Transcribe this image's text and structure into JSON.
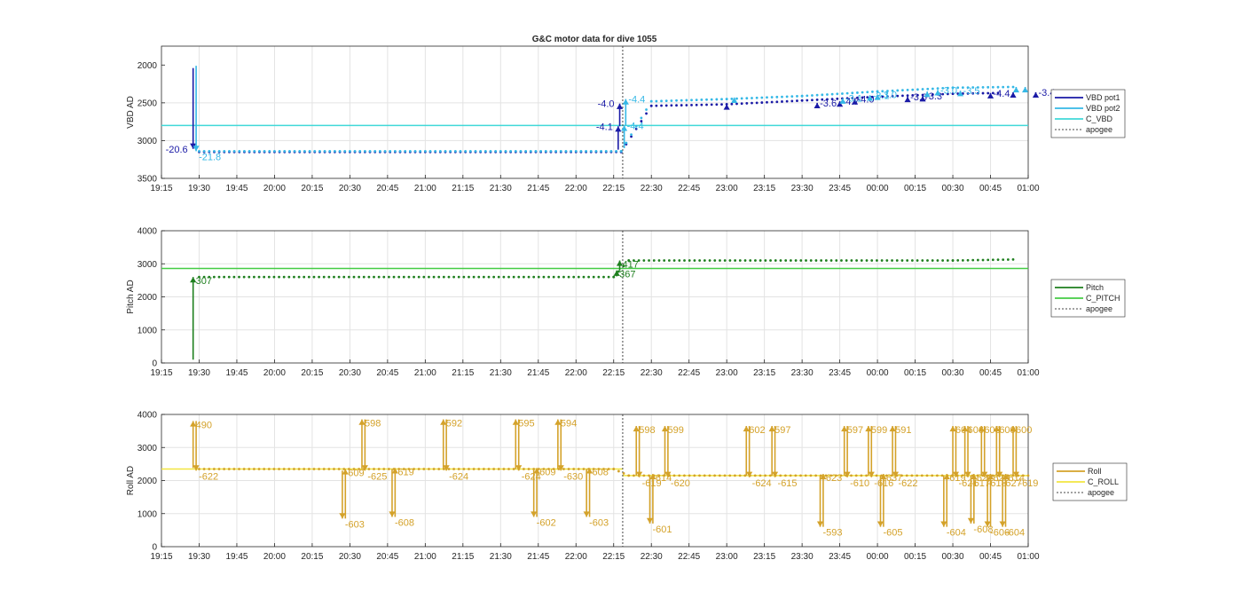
{
  "figure": {
    "title": "G&C motor data for dive 1055"
  },
  "colors": {
    "vbd_pot1": "#1a1aa6",
    "vbd_pot2": "#35b8e6",
    "c_vbd": "#40d8d8",
    "pitch": "#1e7f1e",
    "c_pitch": "#44cc44",
    "roll": "#d4a22a",
    "c_roll": "#f2e640",
    "apogee": "#444444",
    "grid": "#e3e3e3",
    "axis": "#262626"
  },
  "time_ticks": [
    "19:15",
    "19:30",
    "19:45",
    "20:00",
    "20:15",
    "20:30",
    "20:45",
    "21:00",
    "21:15",
    "21:30",
    "21:45",
    "22:00",
    "22:15",
    "22:30",
    "22:45",
    "23:00",
    "23:15",
    "23:30",
    "23:45",
    "00:00",
    "00:15",
    "00:30",
    "00:45",
    "01:00"
  ],
  "chart_data": [
    {
      "type": "line",
      "title": "G&C motor data for dive 1055",
      "ylabel": "VBD AD",
      "xlim_hours": [
        19.25,
        25.0
      ],
      "ylim": [
        3500,
        1750
      ],
      "yticks": [
        "2000",
        "2500",
        "3000",
        "3500"
      ],
      "grid": true,
      "legend_position": "right",
      "legend": [
        "VBD pot1",
        "VBD pot2",
        "C_VBD",
        "apogee"
      ],
      "apogee_hours": 22.31,
      "reference_line": {
        "name": "C_VBD",
        "value": 2800
      },
      "series": [
        {
          "name": "VBD pot1",
          "x_hours": [
            19.5,
            22.3,
            22.5,
            23.0,
            23.5,
            24.0,
            24.5,
            24.8
          ],
          "values": [
            3150,
            3150,
            2540,
            2520,
            2470,
            2420,
            2380,
            2370
          ]
        },
        {
          "name": "VBD pot2",
          "x_hours": [
            19.5,
            22.3,
            22.5,
            23.0,
            23.5,
            24.0,
            24.5,
            24.9
          ],
          "values": [
            3140,
            3140,
            2480,
            2450,
            2410,
            2350,
            2300,
            2290
          ]
        }
      ],
      "moves": [
        {
          "series": "VBD pot1",
          "x_hours": 19.46,
          "from": 2040,
          "to": 3110,
          "label": "-20.6"
        },
        {
          "series": "VBD pot2",
          "x_hours": 19.48,
          "from": 2010,
          "to": 3140,
          "label": "-21.8"
        },
        {
          "series": "VBD pot1",
          "x_hours": 22.28,
          "from": 3120,
          "to": 2810,
          "label": "-4.1"
        },
        {
          "series": "VBD pot1",
          "x_hours": 22.29,
          "from": 2810,
          "to": 2510,
          "label": "-4.0"
        },
        {
          "series": "VBD pot2",
          "x_hours": 22.32,
          "from": 3100,
          "to": 2800,
          "label": "-4.4"
        },
        {
          "series": "VBD pot2",
          "x_hours": 22.33,
          "from": 2800,
          "to": 2450,
          "label": "-4.4"
        },
        {
          "series": "VBD pot1",
          "x_hours": 23.0,
          "from": 2560,
          "to": 2520,
          "label": ""
        },
        {
          "series": "VBD pot2",
          "x_hours": 23.05,
          "from": 2460,
          "to": 2430,
          "label": ""
        },
        {
          "series": "VBD pot1",
          "x_hours": 23.6,
          "from": 2520,
          "to": 2500,
          "label": "-3.6"
        },
        {
          "series": "VBD pot1",
          "x_hours": 23.75,
          "from": 2510,
          "to": 2480,
          "label": "-4.7"
        },
        {
          "series": "VBD pot1",
          "x_hours": 23.85,
          "from": 2490,
          "to": 2450,
          "label": "-4.0"
        },
        {
          "series": "VBD pot2",
          "x_hours": 23.77,
          "from": 2470,
          "to": 2440,
          "label": "-3.1"
        },
        {
          "series": "VBD pot2",
          "x_hours": 23.95,
          "from": 2430,
          "to": 2400,
          "label": "-3.1"
        },
        {
          "series": "VBD pot2",
          "x_hours": 24.0,
          "from": 2420,
          "to": 2390,
          "label": "-3.0"
        },
        {
          "series": "VBD pot1",
          "x_hours": 24.2,
          "from": 2450,
          "to": 2420,
          "label": "-3.6"
        },
        {
          "series": "VBD pot1",
          "x_hours": 24.3,
          "from": 2430,
          "to": 2410,
          "label": "-3.3"
        },
        {
          "series": "VBD pot2",
          "x_hours": 24.33,
          "from": 2380,
          "to": 2350,
          "label": ""
        },
        {
          "series": "VBD pot2",
          "x_hours": 24.4,
          "from": 2370,
          "to": 2330,
          "label": "-3.0"
        },
        {
          "series": "VBD pot2",
          "x_hours": 24.55,
          "from": 2360,
          "to": 2340,
          "label": "-3.5"
        },
        {
          "series": "VBD pot1",
          "x_hours": 24.75,
          "from": 2390,
          "to": 2370,
          "label": "-4.4"
        },
        {
          "series": "VBD pot1",
          "x_hours": 24.9,
          "from": 2380,
          "to": 2360,
          "label": ""
        },
        {
          "series": "VBD pot2",
          "x_hours": 24.92,
          "from": 2320,
          "to": 2290,
          "label": ""
        },
        {
          "series": "VBD pot1",
          "x_hours": 25.05,
          "from": 2380,
          "to": 2360,
          "label": "-3.4"
        },
        {
          "series": "VBD pot2",
          "x_hours": 24.98,
          "from": 2310,
          "to": 2290,
          "label": ""
        }
      ]
    },
    {
      "type": "line",
      "ylabel": "Pitch AD",
      "xlim_hours": [
        19.25,
        25.0
      ],
      "ylim": [
        0,
        4000
      ],
      "yticks": [
        "0",
        "1000",
        "2000",
        "3000",
        "4000"
      ],
      "grid": true,
      "legend_position": "right",
      "legend": [
        "Pitch",
        "C_PITCH",
        "apogee"
      ],
      "apogee_hours": 22.31,
      "reference_line": {
        "name": "C_PITCH",
        "value": 2860
      },
      "series": [
        {
          "name": "Pitch",
          "x_hours": [
            19.5,
            22.25,
            22.35,
            24.5,
            24.9
          ],
          "values": [
            2600,
            2600,
            3100,
            3100,
            3130
          ]
        }
      ],
      "moves": [
        {
          "series": "Pitch",
          "x_hours": 19.46,
          "from": 100,
          "to": 2600,
          "label": "307"
        },
        {
          "series": "Pitch",
          "x_hours": 22.27,
          "from": 2620,
          "to": 2800,
          "label": "367"
        },
        {
          "series": "Pitch",
          "x_hours": 22.29,
          "from": 2800,
          "to": 3100,
          "label": "417"
        }
      ]
    },
    {
      "type": "line",
      "ylabel": "Roll AD",
      "xlim_hours": [
        19.25,
        25.0
      ],
      "ylim": [
        0,
        4000
      ],
      "yticks": [
        "0",
        "1000",
        "2000",
        "3000",
        "4000"
      ],
      "grid": true,
      "legend_position": "right",
      "legend": [
        "Roll",
        "C_ROLL",
        "apogee"
      ],
      "apogee_hours": 22.31,
      "reference_lines": [
        {
          "name": "C_ROLL",
          "x_hours": [
            19.25,
            22.31
          ],
          "value": 2350
        },
        {
          "name": "C_ROLL",
          "x_hours": [
            22.31,
            25.0
          ],
          "value": 2150
        }
      ],
      "series": [
        {
          "name": "Roll",
          "x_hours": [
            19.5,
            22.25,
            22.35,
            25.0
          ],
          "values": [
            2350,
            2350,
            2150,
            2150
          ]
        }
      ],
      "moves": [
        {
          "x_hours": 19.46,
          "from": 2380,
          "to": 3800,
          "label": "490"
        },
        {
          "x_hours": 19.48,
          "from": 3800,
          "to": 2300,
          "label": "-622"
        },
        {
          "x_hours": 20.45,
          "from": 2300,
          "to": 850,
          "label": "-603"
        },
        {
          "x_hours": 20.47,
          "from": 850,
          "to": 2350,
          "label": "609"
        },
        {
          "x_hours": 20.58,
          "from": 2350,
          "to": 3850,
          "label": "598"
        },
        {
          "x_hours": 20.6,
          "from": 3850,
          "to": 2300,
          "label": "-625"
        },
        {
          "x_hours": 20.78,
          "from": 2350,
          "to": 900,
          "label": "-608"
        },
        {
          "x_hours": 20.8,
          "from": 900,
          "to": 2380,
          "label": "619"
        },
        {
          "x_hours": 21.12,
          "from": 2350,
          "to": 3850,
          "label": "592"
        },
        {
          "x_hours": 21.14,
          "from": 3850,
          "to": 2300,
          "label": "-624"
        },
        {
          "x_hours": 21.6,
          "from": 2350,
          "to": 3850,
          "label": "595"
        },
        {
          "x_hours": 21.62,
          "from": 3850,
          "to": 2300,
          "label": "-624"
        },
        {
          "x_hours": 21.72,
          "from": 2350,
          "to": 900,
          "label": "-602"
        },
        {
          "x_hours": 21.74,
          "from": 900,
          "to": 2380,
          "label": "609"
        },
        {
          "x_hours": 21.88,
          "from": 2350,
          "to": 3850,
          "label": "594"
        },
        {
          "x_hours": 21.9,
          "from": 3850,
          "to": 2300,
          "label": "-630"
        },
        {
          "x_hours": 22.07,
          "from": 2350,
          "to": 900,
          "label": "-603"
        },
        {
          "x_hours": 22.09,
          "from": 900,
          "to": 2380,
          "label": "608"
        },
        {
          "x_hours": 22.4,
          "from": 2150,
          "to": 3650,
          "label": "598"
        },
        {
          "x_hours": 22.42,
          "from": 3650,
          "to": 2100,
          "label": "-619"
        },
        {
          "x_hours": 22.49,
          "from": 2150,
          "to": 700,
          "label": "-601"
        },
        {
          "x_hours": 22.51,
          "from": 700,
          "to": 2200,
          "label": "614"
        },
        {
          "x_hours": 22.59,
          "from": 2150,
          "to": 3650,
          "label": "599"
        },
        {
          "x_hours": 22.61,
          "from": 3650,
          "to": 2100,
          "label": "-620"
        },
        {
          "x_hours": 23.13,
          "from": 2150,
          "to": 3650,
          "label": "602"
        },
        {
          "x_hours": 23.15,
          "from": 3650,
          "to": 2100,
          "label": "-624"
        },
        {
          "x_hours": 23.3,
          "from": 2150,
          "to": 3650,
          "label": "597"
        },
        {
          "x_hours": 23.32,
          "from": 3650,
          "to": 2100,
          "label": "-615"
        },
        {
          "x_hours": 23.62,
          "from": 2150,
          "to": 600,
          "label": "-593"
        },
        {
          "x_hours": 23.64,
          "from": 600,
          "to": 2200,
          "label": "623"
        },
        {
          "x_hours": 23.78,
          "from": 2150,
          "to": 3650,
          "label": "597"
        },
        {
          "x_hours": 23.8,
          "from": 3650,
          "to": 2100,
          "label": "-610"
        },
        {
          "x_hours": 23.94,
          "from": 2150,
          "to": 3650,
          "label": "599"
        },
        {
          "x_hours": 23.96,
          "from": 3650,
          "to": 2100,
          "label": "-616"
        },
        {
          "x_hours": 24.02,
          "from": 2150,
          "to": 600,
          "label": "-605"
        },
        {
          "x_hours": 24.04,
          "from": 600,
          "to": 2200,
          "label": "637"
        },
        {
          "x_hours": 24.1,
          "from": 2150,
          "to": 3650,
          "label": "591"
        },
        {
          "x_hours": 24.12,
          "from": 3650,
          "to": 2100,
          "label": "-622"
        },
        {
          "x_hours": 24.44,
          "from": 2150,
          "to": 600,
          "label": "-604"
        },
        {
          "x_hours": 24.46,
          "from": 600,
          "to": 2200,
          "label": "619"
        },
        {
          "x_hours": 24.5,
          "from": 2150,
          "to": 3650,
          "label": "604"
        },
        {
          "x_hours": 24.52,
          "from": 3650,
          "to": 2100,
          "label": "-621"
        },
        {
          "x_hours": 24.58,
          "from": 2150,
          "to": 3650,
          "label": "606"
        },
        {
          "x_hours": 24.6,
          "from": 3650,
          "to": 2100,
          "label": "-617"
        },
        {
          "x_hours": 24.62,
          "from": 2150,
          "to": 700,
          "label": "-608"
        },
        {
          "x_hours": 24.64,
          "from": 700,
          "to": 2200,
          "label": "622"
        },
        {
          "x_hours": 24.69,
          "from": 2150,
          "to": 3650,
          "label": "603"
        },
        {
          "x_hours": 24.71,
          "from": 3650,
          "to": 2100,
          "label": "-618"
        },
        {
          "x_hours": 24.73,
          "from": 2150,
          "to": 600,
          "label": "-606"
        },
        {
          "x_hours": 24.75,
          "from": 600,
          "to": 2200,
          "label": "626"
        },
        {
          "x_hours": 24.79,
          "from": 2150,
          "to": 3650,
          "label": "600"
        },
        {
          "x_hours": 24.81,
          "from": 3650,
          "to": 2100,
          "label": "-627"
        },
        {
          "x_hours": 24.83,
          "from": 2150,
          "to": 600,
          "label": "-604"
        },
        {
          "x_hours": 24.85,
          "from": 600,
          "to": 2200,
          "label": "614"
        },
        {
          "x_hours": 24.9,
          "from": 2150,
          "to": 3650,
          "label": "600"
        },
        {
          "x_hours": 24.92,
          "from": 3650,
          "to": 2100,
          "label": "-619"
        }
      ]
    }
  ]
}
